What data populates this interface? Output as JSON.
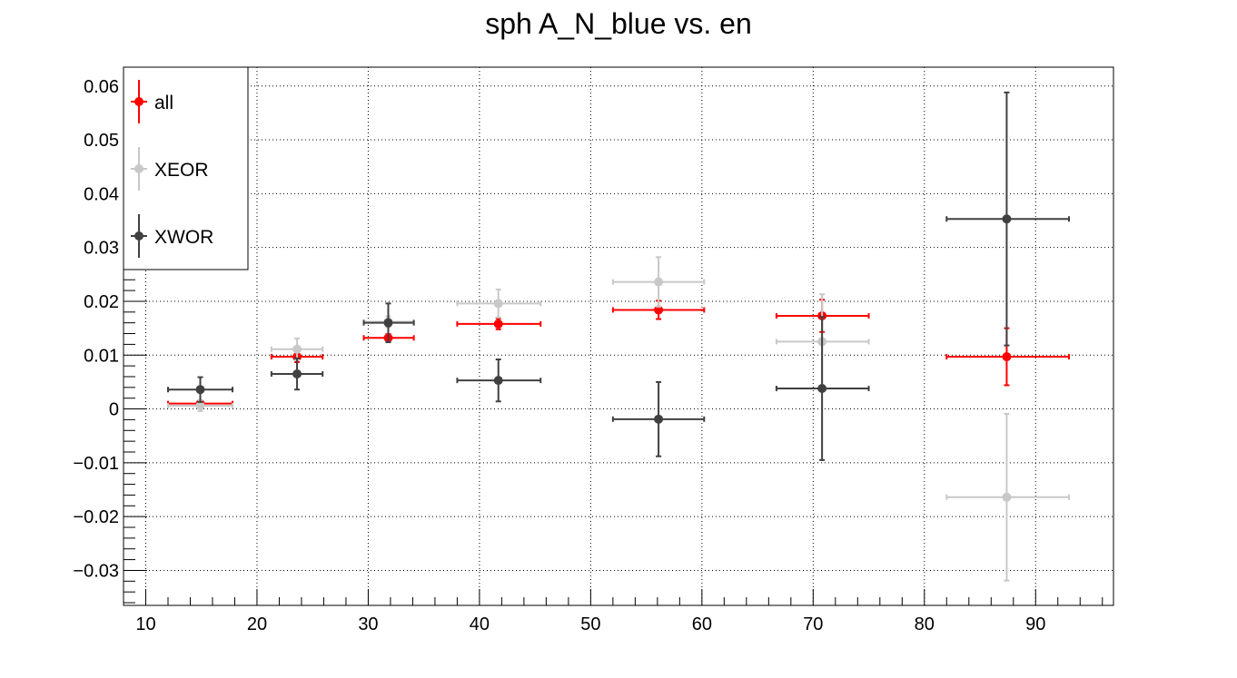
{
  "chart_data": {
    "type": "scatter",
    "title": "sph A_N_blue vs. en",
    "xlabel": "",
    "ylabel": "",
    "xlim": [
      8,
      97
    ],
    "ylim": [
      -0.0365,
      0.0635
    ],
    "x_ticks": [
      10,
      20,
      30,
      40,
      50,
      60,
      70,
      80,
      90
    ],
    "x_tick_labels": [
      "10",
      "20",
      "30",
      "40",
      "50",
      "60",
      "70",
      "80",
      "90"
    ],
    "y_ticks": [
      0.06,
      0.05,
      0.04,
      0.03,
      0.02,
      0.01,
      0,
      -0.01,
      -0.02,
      -0.03
    ],
    "y_tick_labels": [
      "0.06",
      "0.05",
      "0.04",
      "0.03",
      "0.02",
      "0.01",
      "0",
      "−0.01",
      "−0.02",
      "−0.03"
    ],
    "grid": true,
    "legend_position": "top-left",
    "series": [
      {
        "name": "all",
        "color": "#ff0000",
        "points": [
          {
            "x": 14.9,
            "y": 0.001,
            "xlo": 12.0,
            "xhi": 17.8,
            "yerr": 0.0003
          },
          {
            "x": 23.6,
            "y": 0.0097,
            "xlo": 21.3,
            "xhi": 25.9,
            "yerr": 0.001
          },
          {
            "x": 31.8,
            "y": 0.0132,
            "xlo": 29.6,
            "xhi": 34.1,
            "yerr": 0.0007
          },
          {
            "x": 41.7,
            "y": 0.0158,
            "xlo": 38.0,
            "xhi": 45.5,
            "yerr": 0.001
          },
          {
            "x": 56.1,
            "y": 0.0184,
            "xlo": 52.0,
            "xhi": 60.2,
            "yerr": 0.0017
          },
          {
            "x": 70.8,
            "y": 0.0173,
            "xlo": 66.7,
            "xhi": 75.0,
            "yerr": 0.003
          },
          {
            "x": 87.4,
            "y": 0.0097,
            "xlo": 82.0,
            "xhi": 93.0,
            "yerr": 0.0053
          }
        ]
      },
      {
        "name": "XEOR",
        "color": "#c8c8c8",
        "points": [
          {
            "x": 14.9,
            "y": 0.0006,
            "xlo": 12.0,
            "xhi": 17.8,
            "yerr": 0.001
          },
          {
            "x": 23.6,
            "y": 0.0111,
            "xlo": 21.3,
            "xhi": 25.9,
            "yerr": 0.002
          },
          {
            "x": 31.8,
            "y": 0.0162,
            "xlo": 29.6,
            "xhi": 34.1,
            "yerr": 0.001
          },
          {
            "x": 41.7,
            "y": 0.0196,
            "xlo": 38.0,
            "xhi": 45.5,
            "yerr": 0.0026
          },
          {
            "x": 56.1,
            "y": 0.0236,
            "xlo": 52.0,
            "xhi": 60.2,
            "yerr": 0.0046
          },
          {
            "x": 70.8,
            "y": 0.0125,
            "xlo": 66.7,
            "xhi": 75.0,
            "yerr": 0.0088
          },
          {
            "x": 87.4,
            "y": -0.0164,
            "xlo": 82.0,
            "xhi": 93.0,
            "yerr": 0.0155
          }
        ]
      },
      {
        "name": "XWOR",
        "color": "#404040",
        "points": [
          {
            "x": 14.9,
            "y": 0.0036,
            "xlo": 12.0,
            "xhi": 17.8,
            "yerr": 0.0023
          },
          {
            "x": 23.6,
            "y": 0.0065,
            "xlo": 21.3,
            "xhi": 25.9,
            "yerr": 0.0029
          },
          {
            "x": 31.8,
            "y": 0.016,
            "xlo": 29.6,
            "xhi": 34.1,
            "yerr": 0.0036
          },
          {
            "x": 41.7,
            "y": 0.0053,
            "xlo": 38.0,
            "xhi": 45.5,
            "yerr": 0.0039
          },
          {
            "x": 56.1,
            "y": -0.0019,
            "xlo": 52.0,
            "xhi": 60.2,
            "yerr": 0.0069
          },
          {
            "x": 70.8,
            "y": 0.0038,
            "xlo": 66.7,
            "xhi": 75.0,
            "yerr": 0.0133
          },
          {
            "x": 87.4,
            "y": 0.0353,
            "xlo": 82.0,
            "xhi": 93.0,
            "yerr": 0.0235
          }
        ]
      }
    ]
  }
}
